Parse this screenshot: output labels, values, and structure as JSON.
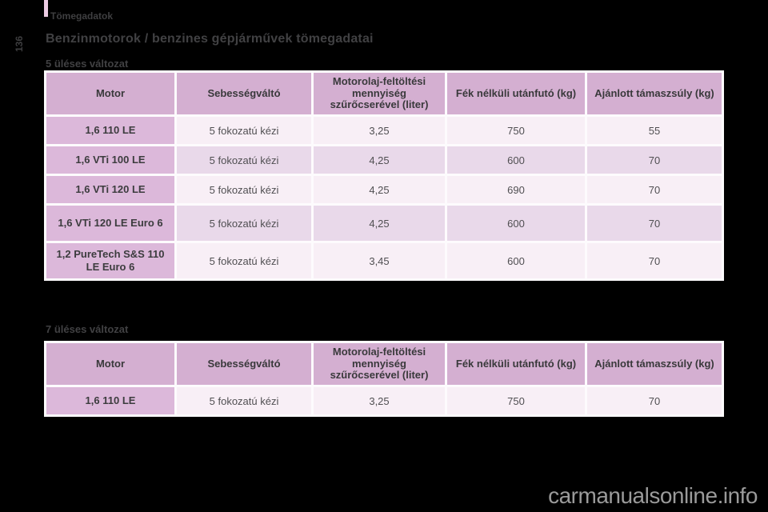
{
  "page": {
    "header_label": "Tömegadatok",
    "page_number": "136",
    "title": "Benzinmotorok / benzines gépjárművek tömegadatai",
    "watermark": "carmanualsonline.info"
  },
  "colors": {
    "background": "#000000",
    "accent_bar": "#eccbe3",
    "header_cell": "#d4afd1",
    "motor_column_cell": "#dcb8da",
    "row_light": "#f8eff6",
    "row_alt": "#e9d9ea",
    "heading_text": "#414143",
    "cell_text": "#504f52",
    "watermark_text": "#9a9a9a"
  },
  "tables": [
    {
      "section_label": "5 üléses változat",
      "columns": [
        "Motor",
        "Sebességváltó",
        "Motorolaj-feltöltési mennyiség szűrőcserével (liter)",
        "Fék nélküli utánfutó (kg)",
        "Ajánlott támaszsúly (kg)"
      ],
      "rows": [
        {
          "motor": "1,6 110 LE",
          "gearbox": "5 fokozatú kézi",
          "oil": "3,25",
          "trailer": "750",
          "load": "55"
        },
        {
          "motor": "1,6 VTi 100 LE",
          "gearbox": "5 fokozatú kézi",
          "oil": "4,25",
          "trailer": "600",
          "load": "70"
        },
        {
          "motor": "1,6 VTi 120 LE",
          "gearbox": "5 fokozatú kézi",
          "oil": "4,25",
          "trailer": "690",
          "load": "70"
        },
        {
          "motor": "1,6 VTi 120 LE Euro 6",
          "gearbox": "5 fokozatú kézi",
          "oil": "4,25",
          "trailer": "600",
          "load": "70"
        },
        {
          "motor": "1,2 PureTech S&S 110 LE Euro 6",
          "gearbox": "5 fokozatú kézi",
          "oil": "3,45",
          "trailer": "600",
          "load": "70"
        }
      ]
    },
    {
      "section_label": "7 üléses változat",
      "columns": [
        "Motor",
        "Sebességváltó",
        "Motorolaj-feltöltési mennyiség szűrőcserével (liter)",
        "Fék nélküli utánfutó (kg)",
        "Ajánlott támaszsúly (kg)"
      ],
      "rows": [
        {
          "motor": "1,6 110 LE",
          "gearbox": "5 fokozatú kézi",
          "oil": "3,25",
          "trailer": "750",
          "load": "70"
        }
      ]
    }
  ]
}
